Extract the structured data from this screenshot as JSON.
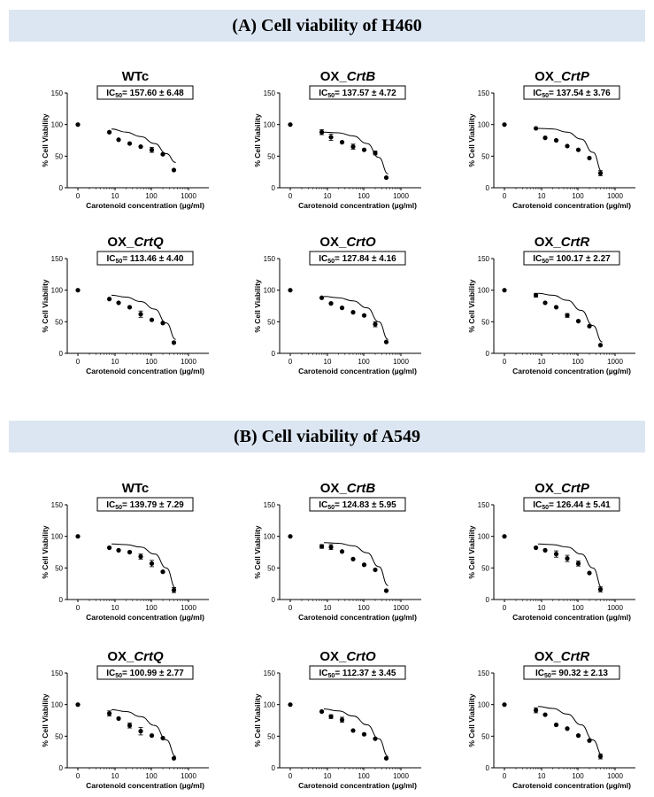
{
  "sections": [
    {
      "title": "(A) Cell viability of H460",
      "charts": [
        {
          "type": "scatter",
          "title_prefix": "WTc",
          "title_gene": "",
          "ic50_value": "= 157.60 ± 6.48",
          "xlabel": "Carotenoid concentration (µg/ml)",
          "ylabel": "% Cell Viability",
          "x_ticks": [
            "0",
            "10",
            "100",
            "1000"
          ],
          "y_ticks": [
            "0",
            "50",
            "100",
            "150"
          ],
          "ylim": [
            0,
            150
          ],
          "points": [
            [
              0,
              100
            ],
            [
              7,
              88
            ],
            [
              12.5,
              76
            ],
            [
              25,
              70
            ],
            [
              50,
              65
            ],
            [
              100,
              60
            ],
            [
              200,
              53
            ],
            [
              400,
              28
            ]
          ],
          "error": [
            0,
            0,
            0,
            0,
            0,
            4,
            0,
            0
          ],
          "fit": [
            93,
            88,
            81,
            70,
            54,
            40
          ]
        },
        {
          "type": "scatter",
          "title_prefix": "OX_",
          "title_gene": "CrtB",
          "ic50_value": "= 137.57 ± 4.72",
          "xlabel": "Carotenoid concentration (µg/ml)",
          "ylabel": "% Cell Viability",
          "x_ticks": [
            "0",
            "10",
            "100",
            "1000"
          ],
          "y_ticks": [
            "0",
            "50",
            "100",
            "150"
          ],
          "ylim": [
            0,
            150
          ],
          "points": [
            [
              0,
              100
            ],
            [
              7,
              88
            ],
            [
              12.5,
              80
            ],
            [
              25,
              72
            ],
            [
              50,
              65
            ],
            [
              100,
              60
            ],
            [
              200,
              55
            ],
            [
              400,
              16
            ]
          ],
          "error": [
            0,
            4,
            5,
            0,
            4,
            0,
            3,
            0
          ],
          "fit": [
            88,
            87,
            82,
            70,
            48,
            22
          ]
        },
        {
          "type": "scatter",
          "title_prefix": "OX_",
          "title_gene": "CrtP",
          "ic50_value": "= 137.54 ± 3.76",
          "xlabel": "Carotenoid concentration (µg/ml)",
          "ylabel": "% Cell Viability",
          "x_ticks": [
            "0",
            "10",
            "100",
            "1000"
          ],
          "y_ticks": [
            "0",
            "50",
            "100",
            "150"
          ],
          "ylim": [
            0,
            150
          ],
          "points": [
            [
              0,
              100
            ],
            [
              7,
              94
            ],
            [
              12.5,
              79
            ],
            [
              25,
              75
            ],
            [
              50,
              66
            ],
            [
              100,
              60
            ],
            [
              200,
              47
            ],
            [
              400,
              23
            ]
          ],
          "error": [
            0,
            0,
            0,
            0,
            0,
            0,
            0,
            4
          ],
          "fit": [
            94,
            93,
            88,
            77,
            56,
            25
          ]
        },
        {
          "type": "scatter",
          "title_prefix": "OX_",
          "title_gene": "CrtQ",
          "ic50_value": "= 113.46 ± 4.40",
          "xlabel": "Carotenoid concentration (µg/ml)",
          "ylabel": "% Cell Viability",
          "x_ticks": [
            "0",
            "10",
            "100",
            "1000"
          ],
          "y_ticks": [
            "0",
            "50",
            "100",
            "150"
          ],
          "ylim": [
            0,
            150
          ],
          "points": [
            [
              0,
              100
            ],
            [
              7,
              86
            ],
            [
              12.5,
              80
            ],
            [
              25,
              73
            ],
            [
              50,
              62
            ],
            [
              100,
              53
            ],
            [
              200,
              48
            ],
            [
              400,
              17
            ]
          ],
          "error": [
            0,
            0,
            0,
            0,
            5,
            0,
            0,
            0
          ],
          "fit": [
            92,
            89,
            82,
            70,
            48,
            22
          ]
        },
        {
          "type": "scatter",
          "title_prefix": "OX_",
          "title_gene": "CrtO",
          "ic50_value": "= 127.84 ± 4.16",
          "xlabel": "Carotenoid concentration (µg/ml)",
          "ylabel": "% Cell Viability",
          "x_ticks": [
            "0",
            "10",
            "100",
            "1000"
          ],
          "y_ticks": [
            "0",
            "50",
            "100",
            "150"
          ],
          "ylim": [
            0,
            150
          ],
          "points": [
            [
              0,
              100
            ],
            [
              7,
              88
            ],
            [
              12.5,
              79
            ],
            [
              25,
              72
            ],
            [
              50,
              65
            ],
            [
              100,
              60
            ],
            [
              200,
              46
            ],
            [
              400,
              18
            ]
          ],
          "error": [
            0,
            0,
            0,
            0,
            0,
            0,
            4,
            0
          ],
          "fit": [
            90,
            88,
            83,
            72,
            50,
            22
          ]
        },
        {
          "type": "scatter",
          "title_prefix": "OX_",
          "title_gene": "CrtR",
          "ic50_value": "= 100.17 ± 2.27",
          "xlabel": "Carotenoid concentration (µg/ml)",
          "ylabel": "% Cell Viability",
          "x_ticks": [
            "0",
            "10",
            "100",
            "1000"
          ],
          "y_ticks": [
            "0",
            "50",
            "100",
            "150"
          ],
          "ylim": [
            0,
            150
          ],
          "points": [
            [
              0,
              100
            ],
            [
              7,
              92
            ],
            [
              12.5,
              80
            ],
            [
              25,
              73
            ],
            [
              50,
              60
            ],
            [
              100,
              51
            ],
            [
              200,
              43
            ],
            [
              400,
              13
            ]
          ],
          "error": [
            0,
            3,
            0,
            0,
            3,
            0,
            0,
            0
          ],
          "fit": [
            95,
            92,
            84,
            68,
            44,
            18
          ]
        }
      ]
    },
    {
      "title": "(B) Cell viability of A549",
      "charts": [
        {
          "type": "scatter",
          "title_prefix": "WTc",
          "title_gene": "",
          "ic50_value": "= 139.79 ± 7.29",
          "xlabel": "Carotenoid concentration (µg/ml)",
          "ylabel": "% Cell Viability",
          "x_ticks": [
            "0",
            "10",
            "100",
            "1000"
          ],
          "y_ticks": [
            "0",
            "50",
            "100",
            "150"
          ],
          "ylim": [
            0,
            150
          ],
          "points": [
            [
              0,
              100
            ],
            [
              7,
              82
            ],
            [
              12.5,
              78
            ],
            [
              25,
              75
            ],
            [
              50,
              68
            ],
            [
              100,
              57
            ],
            [
              200,
              44
            ],
            [
              400,
              15
            ]
          ],
          "error": [
            0,
            0,
            0,
            0,
            4,
            5,
            0,
            4
          ],
          "fit": [
            88,
            87,
            83,
            72,
            50,
            18
          ]
        },
        {
          "type": "scatter",
          "title_prefix": "OX_",
          "title_gene": "CrtB",
          "ic50_value": "= 124.83 ± 5.95",
          "xlabel": "Carotenoid concentration (µg/ml)",
          "ylabel": "% Cell Viability",
          "x_ticks": [
            "0",
            "10",
            "100",
            "1000"
          ],
          "y_ticks": [
            "0",
            "50",
            "100",
            "150"
          ],
          "ylim": [
            0,
            150
          ],
          "points": [
            [
              0,
              100
            ],
            [
              7,
              84
            ],
            [
              12.5,
              83
            ],
            [
              25,
              76
            ],
            [
              50,
              64
            ],
            [
              100,
              55
            ],
            [
              200,
              47
            ],
            [
              400,
              14
            ]
          ],
          "error": [
            0,
            3,
            4,
            0,
            0,
            0,
            0,
            0
          ],
          "fit": [
            90,
            89,
            85,
            74,
            52,
            22
          ]
        },
        {
          "type": "scatter",
          "title_prefix": "OX_",
          "title_gene": "CrtP",
          "ic50_value": "= 126.44 ± 5.41",
          "xlabel": "Carotenoid concentration (µg/ml)",
          "ylabel": "% Cell Viability",
          "x_ticks": [
            "0",
            "10",
            "100",
            "1000"
          ],
          "y_ticks": [
            "0",
            "50",
            "100",
            "150"
          ],
          "ylim": [
            0,
            150
          ],
          "points": [
            [
              0,
              100
            ],
            [
              7,
              82
            ],
            [
              12.5,
              78
            ],
            [
              25,
              72
            ],
            [
              50,
              65
            ],
            [
              100,
              57
            ],
            [
              200,
              42
            ],
            [
              400,
              16
            ]
          ],
          "error": [
            0,
            0,
            0,
            5,
            5,
            4,
            0,
            4
          ],
          "fit": [
            88,
            87,
            83,
            72,
            50,
            18
          ]
        },
        {
          "type": "scatter",
          "title_prefix": "OX_",
          "title_gene": "CrtQ",
          "ic50_value": "= 100.99 ± 2.77",
          "xlabel": "Carotenoid concentration (µg/ml)",
          "ylabel": "% Cell Viability",
          "x_ticks": [
            "0",
            "10",
            "100",
            "1000"
          ],
          "y_ticks": [
            "0",
            "50",
            "100",
            "150"
          ],
          "ylim": [
            0,
            150
          ],
          "points": [
            [
              0,
              100
            ],
            [
              7,
              86
            ],
            [
              12.5,
              78
            ],
            [
              25,
              67
            ],
            [
              50,
              58
            ],
            [
              100,
              51
            ],
            [
              200,
              47
            ],
            [
              400,
              15
            ]
          ],
          "error": [
            0,
            4,
            0,
            4,
            6,
            0,
            0,
            0
          ],
          "fit": [
            92,
            89,
            81,
            67,
            44,
            18
          ]
        },
        {
          "type": "scatter",
          "title_prefix": "OX_",
          "title_gene": "CrtO",
          "ic50_value": "= 112.37 ± 3.45",
          "xlabel": "Carotenoid concentration (µg/ml)",
          "ylabel": "% Cell Viability",
          "x_ticks": [
            "0",
            "10",
            "100",
            "1000"
          ],
          "y_ticks": [
            "0",
            "50",
            "100",
            "150"
          ],
          "ylim": [
            0,
            150
          ],
          "points": [
            [
              0,
              100
            ],
            [
              7,
              89
            ],
            [
              12.5,
              81
            ],
            [
              25,
              76
            ],
            [
              50,
              59
            ],
            [
              100,
              53
            ],
            [
              200,
              46
            ],
            [
              400,
              15
            ]
          ],
          "error": [
            0,
            0,
            3,
            4,
            0,
            0,
            0,
            0
          ],
          "fit": [
            93,
            90,
            82,
            68,
            46,
            18
          ]
        },
        {
          "type": "scatter",
          "title_prefix": "OX_",
          "title_gene": "CrtR",
          "ic50_value": "= 90.32 ± 2.13",
          "xlabel": "Carotenoid concentration (µg/ml)",
          "ylabel": "% Cell Viability",
          "x_ticks": [
            "0",
            "10",
            "100",
            "1000"
          ],
          "y_ticks": [
            "0",
            "50",
            "100",
            "150"
          ],
          "ylim": [
            0,
            150
          ],
          "points": [
            [
              0,
              100
            ],
            [
              7,
              91
            ],
            [
              12.5,
              84
            ],
            [
              25,
              68
            ],
            [
              50,
              62
            ],
            [
              100,
              51
            ],
            [
              200,
              43
            ],
            [
              400,
              18
            ]
          ],
          "error": [
            0,
            4,
            0,
            0,
            0,
            0,
            0,
            4
          ],
          "fit": [
            97,
            94,
            85,
            68,
            44,
            20
          ]
        }
      ]
    }
  ],
  "colors": {
    "header_bg": "#dce6f2",
    "ink": "#000000"
  }
}
